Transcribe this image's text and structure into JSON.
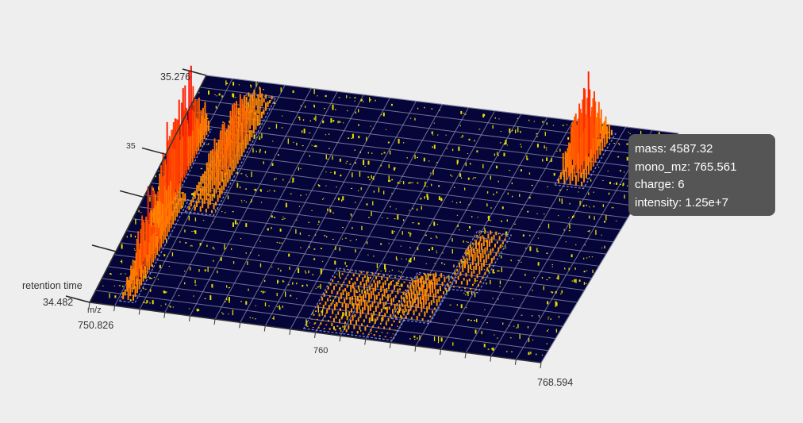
{
  "chart_data": {
    "type": "scatter3d",
    "x_axis": {
      "label": "m/z",
      "min": 750.826,
      "max": 768.594,
      "tick_labels": [
        {
          "value": 750.826,
          "text": "750.826"
        },
        {
          "value": 760,
          "text": "760"
        },
        {
          "value": 768.594,
          "text": "768.594"
        }
      ]
    },
    "y_axis": {
      "label": "retention time",
      "min": 34.482,
      "max": 35.276,
      "tick_labels": [
        {
          "value": 34.482,
          "text": "34.482"
        },
        {
          "value": 35,
          "text": "35"
        },
        {
          "value": 35.276,
          "text": "35.276"
        }
      ]
    },
    "colors": {
      "plane": "#05053a",
      "grid": "#8a8aa8",
      "noise_peak": "#e8e000",
      "feature_low": "#ff9a00",
      "feature_high": "#ff0000",
      "feature_box": "#8fa4ff"
    },
    "features": [
      {
        "mz_min": 751.9,
        "mz_max": 752.5,
        "rt_min": 34.5,
        "rt_max": 34.86,
        "intensity": 11000000.0
      },
      {
        "mz_min": 751.6,
        "mz_max": 752.0,
        "rt_min": 34.75,
        "rt_max": 35.1,
        "intensity": 16000000.0
      },
      {
        "mz_min": 752.6,
        "mz_max": 753.7,
        "rt_min": 34.82,
        "rt_max": 35.23,
        "intensity": 6500000.0
      },
      {
        "mz_min": 759.2,
        "mz_max": 762.7,
        "rt_min": 34.49,
        "rt_max": 34.7,
        "intensity": 1500000.0
      },
      {
        "mz_min": 762.2,
        "mz_max": 763.7,
        "rt_min": 34.56,
        "rt_max": 34.72,
        "intensity": 2500000.0
      },
      {
        "mz_min": 763.5,
        "mz_max": 764.8,
        "rt_min": 34.68,
        "rt_max": 34.88,
        "intensity": 2000000.0
      },
      {
        "mz_min": 765.3,
        "mz_max": 766.4,
        "rt_min": 35.06,
        "rt_max": 35.25,
        "intensity": 12500000.0
      }
    ],
    "tooltip": {
      "mass": 4587.32,
      "mono_mz": 765.561,
      "charge": 6,
      "intensity": 12500000.0
    }
  },
  "tooltip_lines": {
    "mass": "mass: 4587.32",
    "mono_mz": "mono_mz: 765.561",
    "charge": "charge: 6",
    "intensity": "intensity: 1.25e+7"
  }
}
